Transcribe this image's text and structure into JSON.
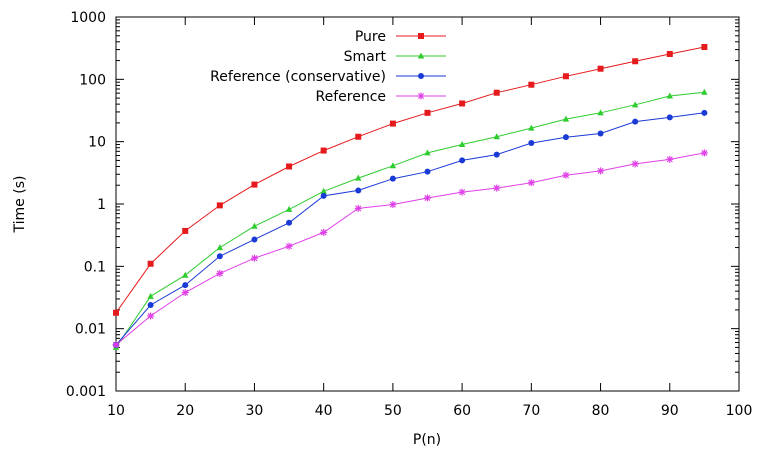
{
  "chart_data": {
    "type": "line",
    "xlabel": "P(n)",
    "ylabel": "Time (s)",
    "xlim": [
      10,
      100
    ],
    "ylim": [
      0.001,
      1000
    ],
    "yscale": "log",
    "grid": false,
    "legend_position": "top-left",
    "x_ticks": [
      10,
      20,
      30,
      40,
      50,
      60,
      70,
      80,
      90,
      100
    ],
    "x_tick_labels": [
      "10",
      "20",
      "30",
      "40",
      "50",
      "60",
      "70",
      "80",
      "90",
      "100"
    ],
    "y_ticks": [
      0.001,
      0.01,
      0.1,
      1,
      10,
      100,
      1000
    ],
    "y_tick_labels": [
      "0.001",
      "0.01",
      "0.1",
      "1",
      "10",
      "100",
      "1000"
    ],
    "x": [
      10,
      15,
      20,
      25,
      30,
      35,
      40,
      45,
      50,
      55,
      60,
      65,
      70,
      75,
      80,
      85,
      90,
      95
    ],
    "series": [
      {
        "name": "Pure",
        "color": "#e41a1c",
        "marker": "square",
        "values": [
          0.018,
          0.11,
          0.37,
          0.95,
          2.05,
          4.0,
          7.2,
          12.0,
          19.5,
          29.0,
          41.0,
          61.0,
          82.0,
          112.0,
          148.0,
          195.0,
          255.0,
          330.0
        ]
      },
      {
        "name": "Smart",
        "color": "#2ecc2e",
        "marker": "triangle",
        "values": [
          0.005,
          0.033,
          0.072,
          0.2,
          0.44,
          0.82,
          1.6,
          2.6,
          4.1,
          6.6,
          9.0,
          12.0,
          16.5,
          23.0,
          29.0,
          39.0,
          54.0,
          62.0
        ]
      },
      {
        "name": "Reference (conservative)",
        "color": "#1a3ad6",
        "marker": "circle",
        "values": [
          0.0055,
          0.024,
          0.05,
          0.145,
          0.27,
          0.5,
          1.35,
          1.65,
          2.55,
          3.3,
          5.0,
          6.2,
          9.5,
          11.8,
          13.5,
          21.0,
          24.5,
          29.0
        ]
      },
      {
        "name": "Reference",
        "color": "#e040e8",
        "marker": "star",
        "values": [
          0.0055,
          0.016,
          0.038,
          0.077,
          0.135,
          0.21,
          0.35,
          0.85,
          0.98,
          1.25,
          1.55,
          1.8,
          2.2,
          2.9,
          3.4,
          4.4,
          5.2,
          6.6
        ]
      }
    ]
  }
}
